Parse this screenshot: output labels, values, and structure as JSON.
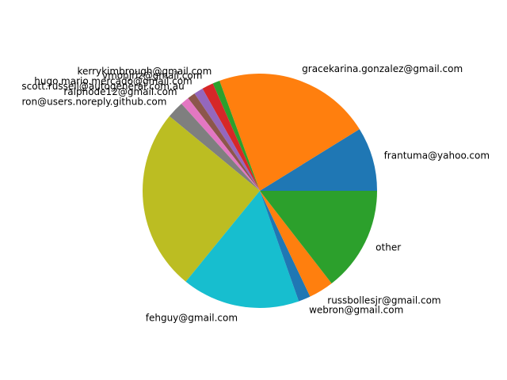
{
  "chart_data": {
    "type": "pie",
    "title": "",
    "start_angle_deg": 0,
    "direction": "counterclockwise",
    "slices": [
      {
        "label": "frantuma@yahoo.com",
        "value": 9.0,
        "color": "#1f77b4"
      },
      {
        "label": "gracekarina.gonzalez@gmail.com",
        "value": 22.2,
        "color": "#ff7f0e"
      },
      {
        "label": "kerrykimbrough@gmail.com",
        "value": 1.0,
        "color": "#2ca02c"
      },
      {
        "label": "vmonjriz@gmail.com",
        "value": 1.6,
        "color": "#d62728"
      },
      {
        "label": "hugo.mario.mercado@gmail.com",
        "value": 1.3,
        "color": "#9467bd"
      },
      {
        "label": "scott.russell@autogeneral.com.au",
        "value": 1.1,
        "color": "#8c564b"
      },
      {
        "label": "ralphode12@gmail.com",
        "value": 1.2,
        "color": "#e377c2"
      },
      {
        "label": "ron@users.noreply.github.com",
        "value": 2.4,
        "color": "#7f7f7f"
      },
      {
        "label": "",
        "value": 25.6,
        "color": "#bcbd22"
      },
      {
        "label": "fehguy@gmail.com",
        "value": 16.6,
        "color": "#17becf"
      },
      {
        "label": "webron@gmail.com",
        "value": 1.7,
        "color": "#1f77b4"
      },
      {
        "label": "russbollesjr@gmail.com",
        "value": 3.5,
        "color": "#ff7f0e"
      },
      {
        "label": "other",
        "value": 14.8,
        "color": "#2ca02c"
      }
    ]
  }
}
